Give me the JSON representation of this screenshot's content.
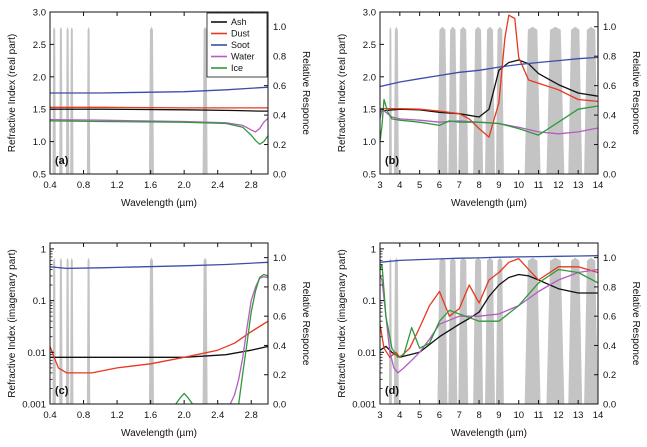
{
  "legend": {
    "entries": [
      {
        "name": "Ash",
        "color": "#111111"
      },
      {
        "name": "Dust",
        "color": "#e8381e"
      },
      {
        "name": "Soot",
        "color": "#3a4fa8"
      },
      {
        "name": "Water",
        "color": "#b45cc0"
      },
      {
        "name": "Ice",
        "color": "#2f9a3a"
      }
    ],
    "placement": "top-right of panel (a)"
  },
  "colors": {
    "response": "#c4c4c4",
    "ash": "#111111",
    "dust": "#e8381e",
    "soot": "#3a4fa8",
    "water": "#b45cc0",
    "ice": "#2f9a3a"
  },
  "chart_data": [
    {
      "type": "line",
      "panel": "(a)",
      "xlabel": "Wavelength (µm)",
      "ylabel": "Refractive Index (real part)",
      "y2label": "Relative Responce",
      "xlim": [
        0.4,
        3.0
      ],
      "xticks": [
        "0.4",
        "0.8",
        "1.2",
        "1.6",
        "2.0",
        "2.4",
        "2.8"
      ],
      "xtick_values": [
        0.4,
        0.8,
        1.2,
        1.6,
        2.0,
        2.4,
        2.8
      ],
      "ylim": [
        0.5,
        3.0
      ],
      "yticks": [
        "0.5",
        "1.0",
        "1.5",
        "2.0",
        "2.5",
        "3.0"
      ],
      "ytick_values": [
        0.5,
        1.0,
        1.5,
        2.0,
        2.5,
        3.0
      ],
      "yscale": "linear",
      "y2lim": [
        0,
        1.1
      ],
      "y2ticks": [
        "0.0",
        "0.2",
        "0.4",
        "0.6",
        "0.8",
        "1.0"
      ],
      "y2tick_values": [
        0,
        0.2,
        0.4,
        0.6,
        0.8,
        1.0
      ],
      "response_bands": [
        [
          0.43,
          0.47
        ],
        [
          0.51,
          0.55
        ],
        [
          0.59,
          0.63
        ],
        [
          0.64,
          0.68
        ],
        [
          0.84,
          0.88
        ],
        [
          1.58,
          1.64
        ],
        [
          2.22,
          2.28
        ]
      ],
      "series": [
        {
          "name": "Ash",
          "color": "#111111",
          "x": [
            0.4,
            1.0,
            2.0,
            2.6,
            2.9,
            3.0
          ],
          "y": [
            1.5,
            1.5,
            1.49,
            1.48,
            1.47,
            1.47
          ]
        },
        {
          "name": "Dust",
          "color": "#e8381e",
          "x": [
            0.4,
            1.0,
            2.0,
            3.0
          ],
          "y": [
            1.53,
            1.53,
            1.52,
            1.52
          ]
        },
        {
          "name": "Soot",
          "color": "#3a4fa8",
          "x": [
            0.4,
            1.0,
            2.0,
            2.5,
            3.0
          ],
          "y": [
            1.75,
            1.75,
            1.77,
            1.8,
            1.84
          ]
        },
        {
          "name": "Water",
          "color": "#b45cc0",
          "x": [
            0.4,
            1.0,
            2.0,
            2.5,
            2.7,
            2.8,
            2.85,
            2.9,
            2.95,
            3.0
          ],
          "y": [
            1.34,
            1.33,
            1.31,
            1.29,
            1.25,
            1.18,
            1.15,
            1.2,
            1.3,
            1.36
          ]
        },
        {
          "name": "Ice",
          "color": "#2f9a3a",
          "x": [
            0.4,
            1.0,
            2.0,
            2.5,
            2.7,
            2.8,
            2.85,
            2.9,
            2.95,
            3.0
          ],
          "y": [
            1.32,
            1.31,
            1.3,
            1.28,
            1.22,
            1.1,
            1.02,
            0.96,
            1.0,
            1.09
          ]
        }
      ]
    },
    {
      "type": "line",
      "panel": "(b)",
      "xlabel": "Wavelength (µm)",
      "ylabel": "Refractive Index (real part)",
      "y2label": "Relative Responce",
      "xlim": [
        3,
        14
      ],
      "xticks": [
        "3",
        "4",
        "5",
        "6",
        "7",
        "8",
        "9",
        "10",
        "11",
        "12",
        "13",
        "14"
      ],
      "xtick_values": [
        3,
        4,
        5,
        6,
        7,
        8,
        9,
        10,
        11,
        12,
        13,
        14
      ],
      "ylim": [
        0.5,
        3.0
      ],
      "yticks": [
        "0.5",
        "1.0",
        "1.5",
        "2.0",
        "2.5",
        "3.0"
      ],
      "ytick_values": [
        0.5,
        1.0,
        1.5,
        2.0,
        2.5,
        3.0
      ],
      "yscale": "linear",
      "y2lim": [
        0,
        1.1
      ],
      "y2ticks": [
        "0.0",
        "0.2",
        "0.4",
        "0.6",
        "0.8",
        "1.0"
      ],
      "y2tick_values": [
        0,
        0.2,
        0.4,
        0.6,
        0.8,
        1.0
      ],
      "response_bands": [
        [
          3.45,
          3.6
        ],
        [
          3.7,
          3.95
        ],
        [
          5.9,
          6.4
        ],
        [
          6.45,
          6.9
        ],
        [
          6.95,
          7.45
        ],
        [
          7.7,
          8.2
        ],
        [
          8.3,
          8.8
        ],
        [
          8.85,
          9.25
        ],
        [
          10.3,
          11.1
        ],
        [
          11.4,
          12.3
        ],
        [
          12.5,
          13.2
        ],
        [
          13.3,
          14.0
        ]
      ],
      "series": [
        {
          "name": "Ash",
          "color": "#111111",
          "x": [
            3,
            4,
            5,
            6,
            7,
            8,
            8.5,
            9,
            9.5,
            10,
            10.5,
            11,
            12,
            13,
            14
          ],
          "y": [
            1.47,
            1.5,
            1.49,
            1.45,
            1.43,
            1.38,
            1.5,
            2.1,
            2.22,
            2.26,
            2.2,
            2.05,
            1.88,
            1.75,
            1.7
          ]
        },
        {
          "name": "Dust",
          "color": "#e8381e",
          "x": [
            3,
            4,
            5,
            6,
            6.5,
            7,
            7.5,
            8,
            8.5,
            9,
            9.3,
            9.5,
            9.8,
            10,
            10.5,
            11,
            12,
            13,
            14
          ],
          "y": [
            1.51,
            1.51,
            1.5,
            1.47,
            1.45,
            1.43,
            1.35,
            1.2,
            1.07,
            1.6,
            2.6,
            2.95,
            2.9,
            2.3,
            1.95,
            1.9,
            1.8,
            1.65,
            1.62
          ]
        },
        {
          "name": "Soot",
          "color": "#3a4fa8",
          "x": [
            3,
            4,
            5,
            6,
            7,
            8,
            9,
            10,
            11,
            12,
            13,
            14
          ],
          "y": [
            1.85,
            1.92,
            1.97,
            2.02,
            2.07,
            2.1,
            2.15,
            2.19,
            2.22,
            2.25,
            2.28,
            2.3
          ]
        },
        {
          "name": "Water",
          "color": "#b45cc0",
          "x": [
            3,
            3.1,
            3.3,
            3.6,
            4,
            5,
            6,
            7,
            8,
            9,
            10,
            11,
            12,
            13,
            14
          ],
          "y": [
            1.35,
            1.5,
            1.45,
            1.38,
            1.35,
            1.33,
            1.3,
            1.32,
            1.3,
            1.28,
            1.22,
            1.15,
            1.12,
            1.15,
            1.21
          ]
        },
        {
          "name": "Ice",
          "color": "#2f9a3a",
          "x": [
            3,
            3.1,
            3.2,
            3.4,
            3.6,
            4,
            5,
            6,
            6.5,
            7,
            8,
            9,
            10,
            11,
            12,
            13,
            14
          ],
          "y": [
            1.0,
            1.25,
            1.65,
            1.45,
            1.35,
            1.33,
            1.3,
            1.25,
            1.32,
            1.3,
            1.3,
            1.28,
            1.2,
            1.1,
            1.3,
            1.5,
            1.55
          ]
        }
      ]
    },
    {
      "type": "line",
      "panel": "(c)",
      "xlabel": "Wavelength (µm)",
      "ylabel": "Refractive Index (imagenary part)",
      "y2label": "Relative Responce",
      "xlim": [
        0.4,
        3.0
      ],
      "xticks": [
        "0.4",
        "0.8",
        "1.2",
        "1.6",
        "2.0",
        "2.4",
        "2.8"
      ],
      "xtick_values": [
        0.4,
        0.8,
        1.2,
        1.6,
        2.0,
        2.4,
        2.8
      ],
      "ylim": [
        0.001,
        1.3
      ],
      "yticks": [
        "0.001",
        "0.01",
        "0.1",
        "1"
      ],
      "ytick_values": [
        0.001,
        0.01,
        0.1,
        1
      ],
      "yscale": "log",
      "y2lim": [
        0,
        1.1
      ],
      "y2ticks": [
        "0.0",
        "0.2",
        "0.4",
        "0.6",
        "0.8",
        "1.0"
      ],
      "y2tick_values": [
        0,
        0.2,
        0.4,
        0.6,
        0.8,
        1.0
      ],
      "response_bands": [
        [
          0.43,
          0.47
        ],
        [
          0.51,
          0.55
        ],
        [
          0.59,
          0.63
        ],
        [
          0.64,
          0.68
        ],
        [
          0.84,
          0.88
        ],
        [
          1.58,
          1.64
        ],
        [
          2.22,
          2.28
        ]
      ],
      "series": [
        {
          "name": "Ash",
          "color": "#111111",
          "x": [
            0.4,
            1.0,
            2.0,
            2.5,
            2.8,
            3.0
          ],
          "y": [
            0.008,
            0.008,
            0.008,
            0.009,
            0.011,
            0.013
          ]
        },
        {
          "name": "Dust",
          "color": "#e8381e",
          "x": [
            0.4,
            0.45,
            0.5,
            0.6,
            0.9,
            1.2,
            1.6,
            2.0,
            2.4,
            2.6,
            2.8,
            3.0
          ],
          "y": [
            0.013,
            0.008,
            0.005,
            0.004,
            0.004,
            0.005,
            0.006,
            0.008,
            0.011,
            0.015,
            0.025,
            0.04
          ]
        },
        {
          "name": "Soot",
          "color": "#3a4fa8",
          "x": [
            0.4,
            0.6,
            1.0,
            1.5,
            2.0,
            2.5,
            3.0
          ],
          "y": [
            0.45,
            0.42,
            0.43,
            0.45,
            0.47,
            0.5,
            0.55
          ]
        },
        {
          "name": "Water",
          "color": "#b45cc0",
          "x": [
            2.55,
            2.6,
            2.65,
            2.7,
            2.75,
            2.8,
            2.85,
            2.9,
            2.95,
            3.0
          ],
          "y": [
            0.001,
            0.0015,
            0.003,
            0.008,
            0.03,
            0.1,
            0.18,
            0.27,
            0.29,
            0.28
          ]
        },
        {
          "name": "Ice",
          "color": "#2f9a3a",
          "x": [
            1.9,
            1.95,
            2.0,
            2.05,
            2.1,
            2.65,
            2.7,
            2.75,
            2.8,
            2.85,
            2.9,
            2.95,
            3.0
          ],
          "y": [
            0.001,
            0.0013,
            0.0016,
            0.0013,
            0.001,
            0.001,
            0.004,
            0.015,
            0.06,
            0.15,
            0.28,
            0.32,
            0.3
          ]
        }
      ]
    },
    {
      "type": "line",
      "panel": "(d)",
      "xlabel": "Wavelength (µm)",
      "ylabel": "Refractive Index (imagenary part)",
      "y2label": "Relative Responce",
      "xlim": [
        3,
        14
      ],
      "xticks": [
        "3",
        "4",
        "5",
        "6",
        "7",
        "8",
        "9",
        "10",
        "11",
        "12",
        "13",
        "14"
      ],
      "xtick_values": [
        3,
        4,
        5,
        6,
        7,
        8,
        9,
        10,
        11,
        12,
        13,
        14
      ],
      "ylim": [
        0.001,
        1.3
      ],
      "yticks": [
        "0.001",
        "0.01",
        "0.1",
        "1"
      ],
      "ytick_values": [
        0.001,
        0.01,
        0.1,
        1
      ],
      "yscale": "log",
      "y2lim": [
        0,
        1.1
      ],
      "y2ticks": [
        "0.0",
        "0.2",
        "0.4",
        "0.6",
        "0.8",
        "1.0"
      ],
      "y2tick_values": [
        0,
        0.2,
        0.4,
        0.6,
        0.8,
        1.0
      ],
      "response_bands": [
        [
          3.45,
          3.6
        ],
        [
          3.7,
          3.95
        ],
        [
          5.9,
          6.4
        ],
        [
          6.45,
          6.9
        ],
        [
          6.95,
          7.45
        ],
        [
          7.7,
          8.2
        ],
        [
          8.3,
          8.8
        ],
        [
          8.85,
          9.25
        ],
        [
          10.3,
          11.1
        ],
        [
          11.4,
          12.3
        ],
        [
          12.5,
          13.2
        ],
        [
          13.3,
          14.0
        ]
      ],
      "series": [
        {
          "name": "Ash",
          "color": "#111111",
          "x": [
            3,
            3.3,
            3.6,
            4,
            5,
            6,
            7,
            7.5,
            8,
            8.5,
            9,
            9.5,
            10,
            10.5,
            11,
            12,
            13,
            14
          ],
          "y": [
            0.011,
            0.013,
            0.01,
            0.008,
            0.01,
            0.02,
            0.035,
            0.045,
            0.06,
            0.12,
            0.2,
            0.28,
            0.32,
            0.3,
            0.25,
            0.17,
            0.14,
            0.14
          ]
        },
        {
          "name": "Dust",
          "color": "#e8381e",
          "x": [
            3,
            3.2,
            3.5,
            3.8,
            4,
            4.5,
            5,
            5.5,
            6,
            6.5,
            7,
            7.5,
            8,
            8.5,
            9,
            9.5,
            10,
            10.5,
            11,
            12,
            13,
            14
          ],
          "y": [
            0.035,
            0.012,
            0.008,
            0.01,
            0.008,
            0.012,
            0.03,
            0.08,
            0.15,
            0.05,
            0.07,
            0.2,
            0.09,
            0.25,
            0.35,
            0.55,
            0.65,
            0.4,
            0.25,
            0.45,
            0.45,
            0.35
          ]
        },
        {
          "name": "Soot",
          "color": "#3a4fa8",
          "x": [
            3,
            4,
            5,
            6,
            7,
            8,
            9,
            10,
            11,
            12,
            13,
            14
          ],
          "y": [
            0.55,
            0.6,
            0.62,
            0.64,
            0.66,
            0.67,
            0.69,
            0.7,
            0.71,
            0.72,
            0.73,
            0.74
          ]
        },
        {
          "name": "Water",
          "color": "#b45cc0",
          "x": [
            3,
            3.1,
            3.3,
            3.5,
            3.7,
            3.9,
            4.2,
            4.6,
            5,
            5.5,
            6,
            7,
            8,
            9,
            10,
            11,
            12,
            13,
            14
          ],
          "y": [
            0.3,
            0.25,
            0.05,
            0.01,
            0.005,
            0.004,
            0.005,
            0.007,
            0.01,
            0.018,
            0.035,
            0.05,
            0.05,
            0.055,
            0.08,
            0.15,
            0.25,
            0.35,
            0.4
          ]
        },
        {
          "name": "Ice",
          "color": "#2f9a3a",
          "x": [
            3,
            3.1,
            3.3,
            3.6,
            3.9,
            4.2,
            4.6,
            5,
            5.5,
            6,
            6.5,
            7,
            8,
            9,
            10,
            11,
            12,
            13,
            14
          ],
          "y": [
            0.4,
            0.5,
            0.05,
            0.012,
            0.008,
            0.009,
            0.03,
            0.012,
            0.015,
            0.04,
            0.065,
            0.055,
            0.04,
            0.04,
            0.08,
            0.22,
            0.4,
            0.35,
            0.22
          ]
        }
      ]
    }
  ]
}
